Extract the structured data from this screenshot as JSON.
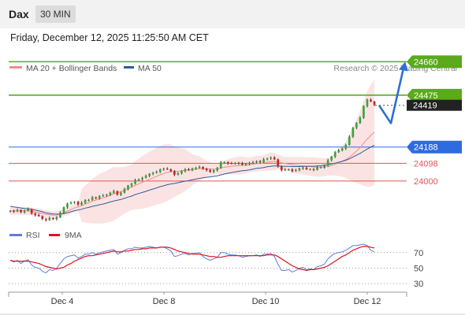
{
  "header": {
    "symbol": "Dax",
    "timeframe": "30 MIN",
    "datetime": "Friday, December 12, 2025 11:25:50 AM CET"
  },
  "credit": "Research © 2025 Trading Central",
  "chart_data": [
    {
      "type": "candlestick",
      "legend": [
        {
          "label": "MA 20 + Bollinger Bands",
          "color": "#f08c8c"
        },
        {
          "label": "MA 50",
          "color": "#2e5c9a"
        }
      ],
      "ylim": [
        23760,
        24740
      ],
      "x_ticks": [
        "Dec 4",
        "Dec 8",
        "Dec 10",
        "Dec 12"
      ],
      "levels": [
        {
          "value": 24660,
          "label": "24660",
          "kind": "resistance",
          "color": "#5aaa1c"
        },
        {
          "value": 24475,
          "label": "24475",
          "kind": "resistance",
          "color": "#5aaa1c"
        },
        {
          "value": 24419,
          "label": "24419",
          "kind": "last-price",
          "color": "#222222"
        },
        {
          "value": 24188,
          "label": "24188",
          "kind": "pivot",
          "color": "#2f6be0"
        },
        {
          "value": 24098,
          "label": "24098",
          "kind": "support",
          "color": "#e05555"
        },
        {
          "value": 24000,
          "label": "24000",
          "kind": "support",
          "color": "#e05555"
        }
      ],
      "forecast_path": [
        24419,
        24320,
        24660
      ],
      "close": [
        23835,
        23832,
        23840,
        23828,
        23836,
        23845,
        23820,
        23812,
        23806,
        23790,
        23784,
        23795,
        23790,
        23800,
        23825,
        23855,
        23875,
        23880,
        23885,
        23870,
        23880,
        23895,
        23895,
        23910,
        23905,
        23916,
        23920,
        23925,
        23935,
        23944,
        23925,
        23935,
        23955,
        23975,
        23985,
        24005,
        24010,
        24018,
        24028,
        24040,
        24045,
        24050,
        24065,
        24068,
        24065,
        24055,
        24035,
        24042,
        24055,
        24065,
        24060,
        24070,
        24073,
        24078,
        24068,
        24060,
        24050,
        24060,
        24072,
        24103,
        24104,
        24098,
        24097,
        24100,
        24098,
        24090,
        24095,
        24100,
        24103,
        24110,
        24104,
        24120,
        24125,
        24130,
        24120,
        24080,
        24060,
        24063,
        24065,
        24055,
        24060,
        24070,
        24073,
        24065,
        24066,
        24062,
        24075,
        24077,
        24085,
        24115,
        24135,
        24160,
        24170,
        24180,
        24200,
        24245,
        24295,
        24320,
        24350,
        24415,
        24450,
        24440,
        24421
      ],
      "ma20": [
        23835,
        23835,
        23836,
        23836,
        23835,
        23835,
        23832,
        23828,
        23825,
        23821,
        23816,
        23814,
        23811,
        23812,
        23817,
        23824,
        23834,
        23842,
        23851,
        23857,
        23864,
        23873,
        23880,
        23889,
        23895,
        23902,
        23907,
        23913,
        23921,
        23930,
        23935,
        23941,
        23949,
        23958,
        23966,
        23976,
        23985,
        23993,
        24001,
        24010,
        24018,
        24026,
        24035,
        24042,
        24048,
        24052,
        24052,
        24054,
        24057,
        24060,
        24061,
        24063,
        24066,
        24069,
        24068,
        24067,
        24066,
        24066,
        24067,
        24072,
        24076,
        24079,
        24082,
        24084,
        24086,
        24087,
        24088,
        24090,
        24093,
        24097,
        24097,
        24100,
        24104,
        24108,
        24108,
        24105,
        24100,
        24097,
        24094,
        24090,
        24087,
        24086,
        24084,
        24082,
        24080,
        24078,
        24077,
        24076,
        24077,
        24080,
        24085,
        24092,
        24101,
        24110,
        24119,
        24131,
        24148,
        24166,
        24185,
        24209,
        24232,
        24252,
        24270
      ],
      "ma50": [
        23860,
        23857,
        23854,
        23851,
        23848,
        23846,
        23843,
        23839,
        23835,
        23830,
        23824,
        23821,
        23818,
        23817,
        23818,
        23820,
        23825,
        23830,
        23836,
        23840,
        23844,
        23850,
        23854,
        23860,
        23864,
        23869,
        23873,
        23878,
        23884,
        23890,
        23894,
        23898,
        23904,
        23911,
        23917,
        23925,
        23931,
        23937,
        23943,
        23950,
        23956,
        23962,
        23969,
        23974,
        23980,
        23984,
        23987,
        23991,
        23995,
        23999,
        24003,
        24007,
        24011,
        24015,
        24018,
        24021,
        24023,
        24026,
        24029,
        24034,
        24039,
        24043,
        24047,
        24051,
        24054,
        24057,
        24059,
        24062,
        24066,
        24070,
        24072,
        24075,
        24079,
        24082,
        24084,
        24083,
        24082,
        24081,
        24081,
        24080,
        24080,
        24080,
        24081,
        24081,
        24082,
        24082,
        24083,
        24085,
        24087,
        24090,
        24094,
        24099,
        24104,
        24109,
        24115,
        24123,
        24133,
        24143,
        24153,
        24165,
        24177,
        24188,
        24198
      ]
    },
    {
      "type": "line",
      "legend": [
        {
          "label": "RSI",
          "color": "#5a80d8"
        },
        {
          "label": "9MA",
          "color": "#e01020"
        }
      ],
      "ylim": [
        20,
        84
      ],
      "levels": [
        {
          "value": 70,
          "label": "70"
        },
        {
          "value": 50,
          "label": "50"
        },
        {
          "value": 30,
          "label": "30"
        }
      ],
      "rsi": [
        60,
        58,
        60,
        56,
        59,
        61,
        54,
        51,
        50,
        46,
        44,
        48,
        47,
        50,
        56,
        62,
        65,
        66,
        67,
        63,
        65,
        68,
        68,
        70,
        68,
        70,
        71,
        72,
        73,
        74,
        68,
        70,
        73,
        75,
        75,
        77,
        76,
        76,
        77,
        78,
        77,
        76,
        77,
        77,
        75,
        72,
        65,
        66,
        68,
        69,
        67,
        69,
        69,
        70,
        65,
        62,
        60,
        62,
        64,
        70,
        70,
        68,
        67,
        67,
        66,
        64,
        65,
        66,
        66,
        67,
        65,
        68,
        68,
        69,
        65,
        55,
        47,
        47,
        48,
        45,
        47,
        50,
        51,
        48,
        49,
        48,
        52,
        53,
        55,
        62,
        66,
        69,
        70,
        71,
        73,
        76,
        79,
        79,
        80,
        81,
        79,
        73,
        71
      ],
      "ma9": [
        60,
        59,
        59,
        59,
        59,
        59,
        58,
        57,
        56,
        54,
        52,
        51,
        50,
        49,
        50,
        51,
        54,
        56,
        59,
        61,
        63,
        65,
        66,
        66,
        67,
        68,
        69,
        70,
        71,
        72,
        71,
        71,
        72,
        72,
        73,
        74,
        74,
        75,
        75,
        76,
        76,
        76,
        77,
        77,
        77,
        76,
        74,
        72,
        71,
        70,
        69,
        68,
        68,
        68,
        67,
        66,
        65,
        65,
        64,
        64,
        65,
        66,
        66,
        66,
        66,
        66,
        66,
        66,
        66,
        66,
        66,
        66,
        67,
        67,
        67,
        65,
        62,
        59,
        56,
        53,
        51,
        49,
        48,
        47,
        48,
        48,
        49,
        50,
        51,
        53,
        56,
        59,
        62,
        65,
        67,
        70,
        73,
        75,
        77,
        78,
        78,
        77,
        76
      ]
    }
  ]
}
